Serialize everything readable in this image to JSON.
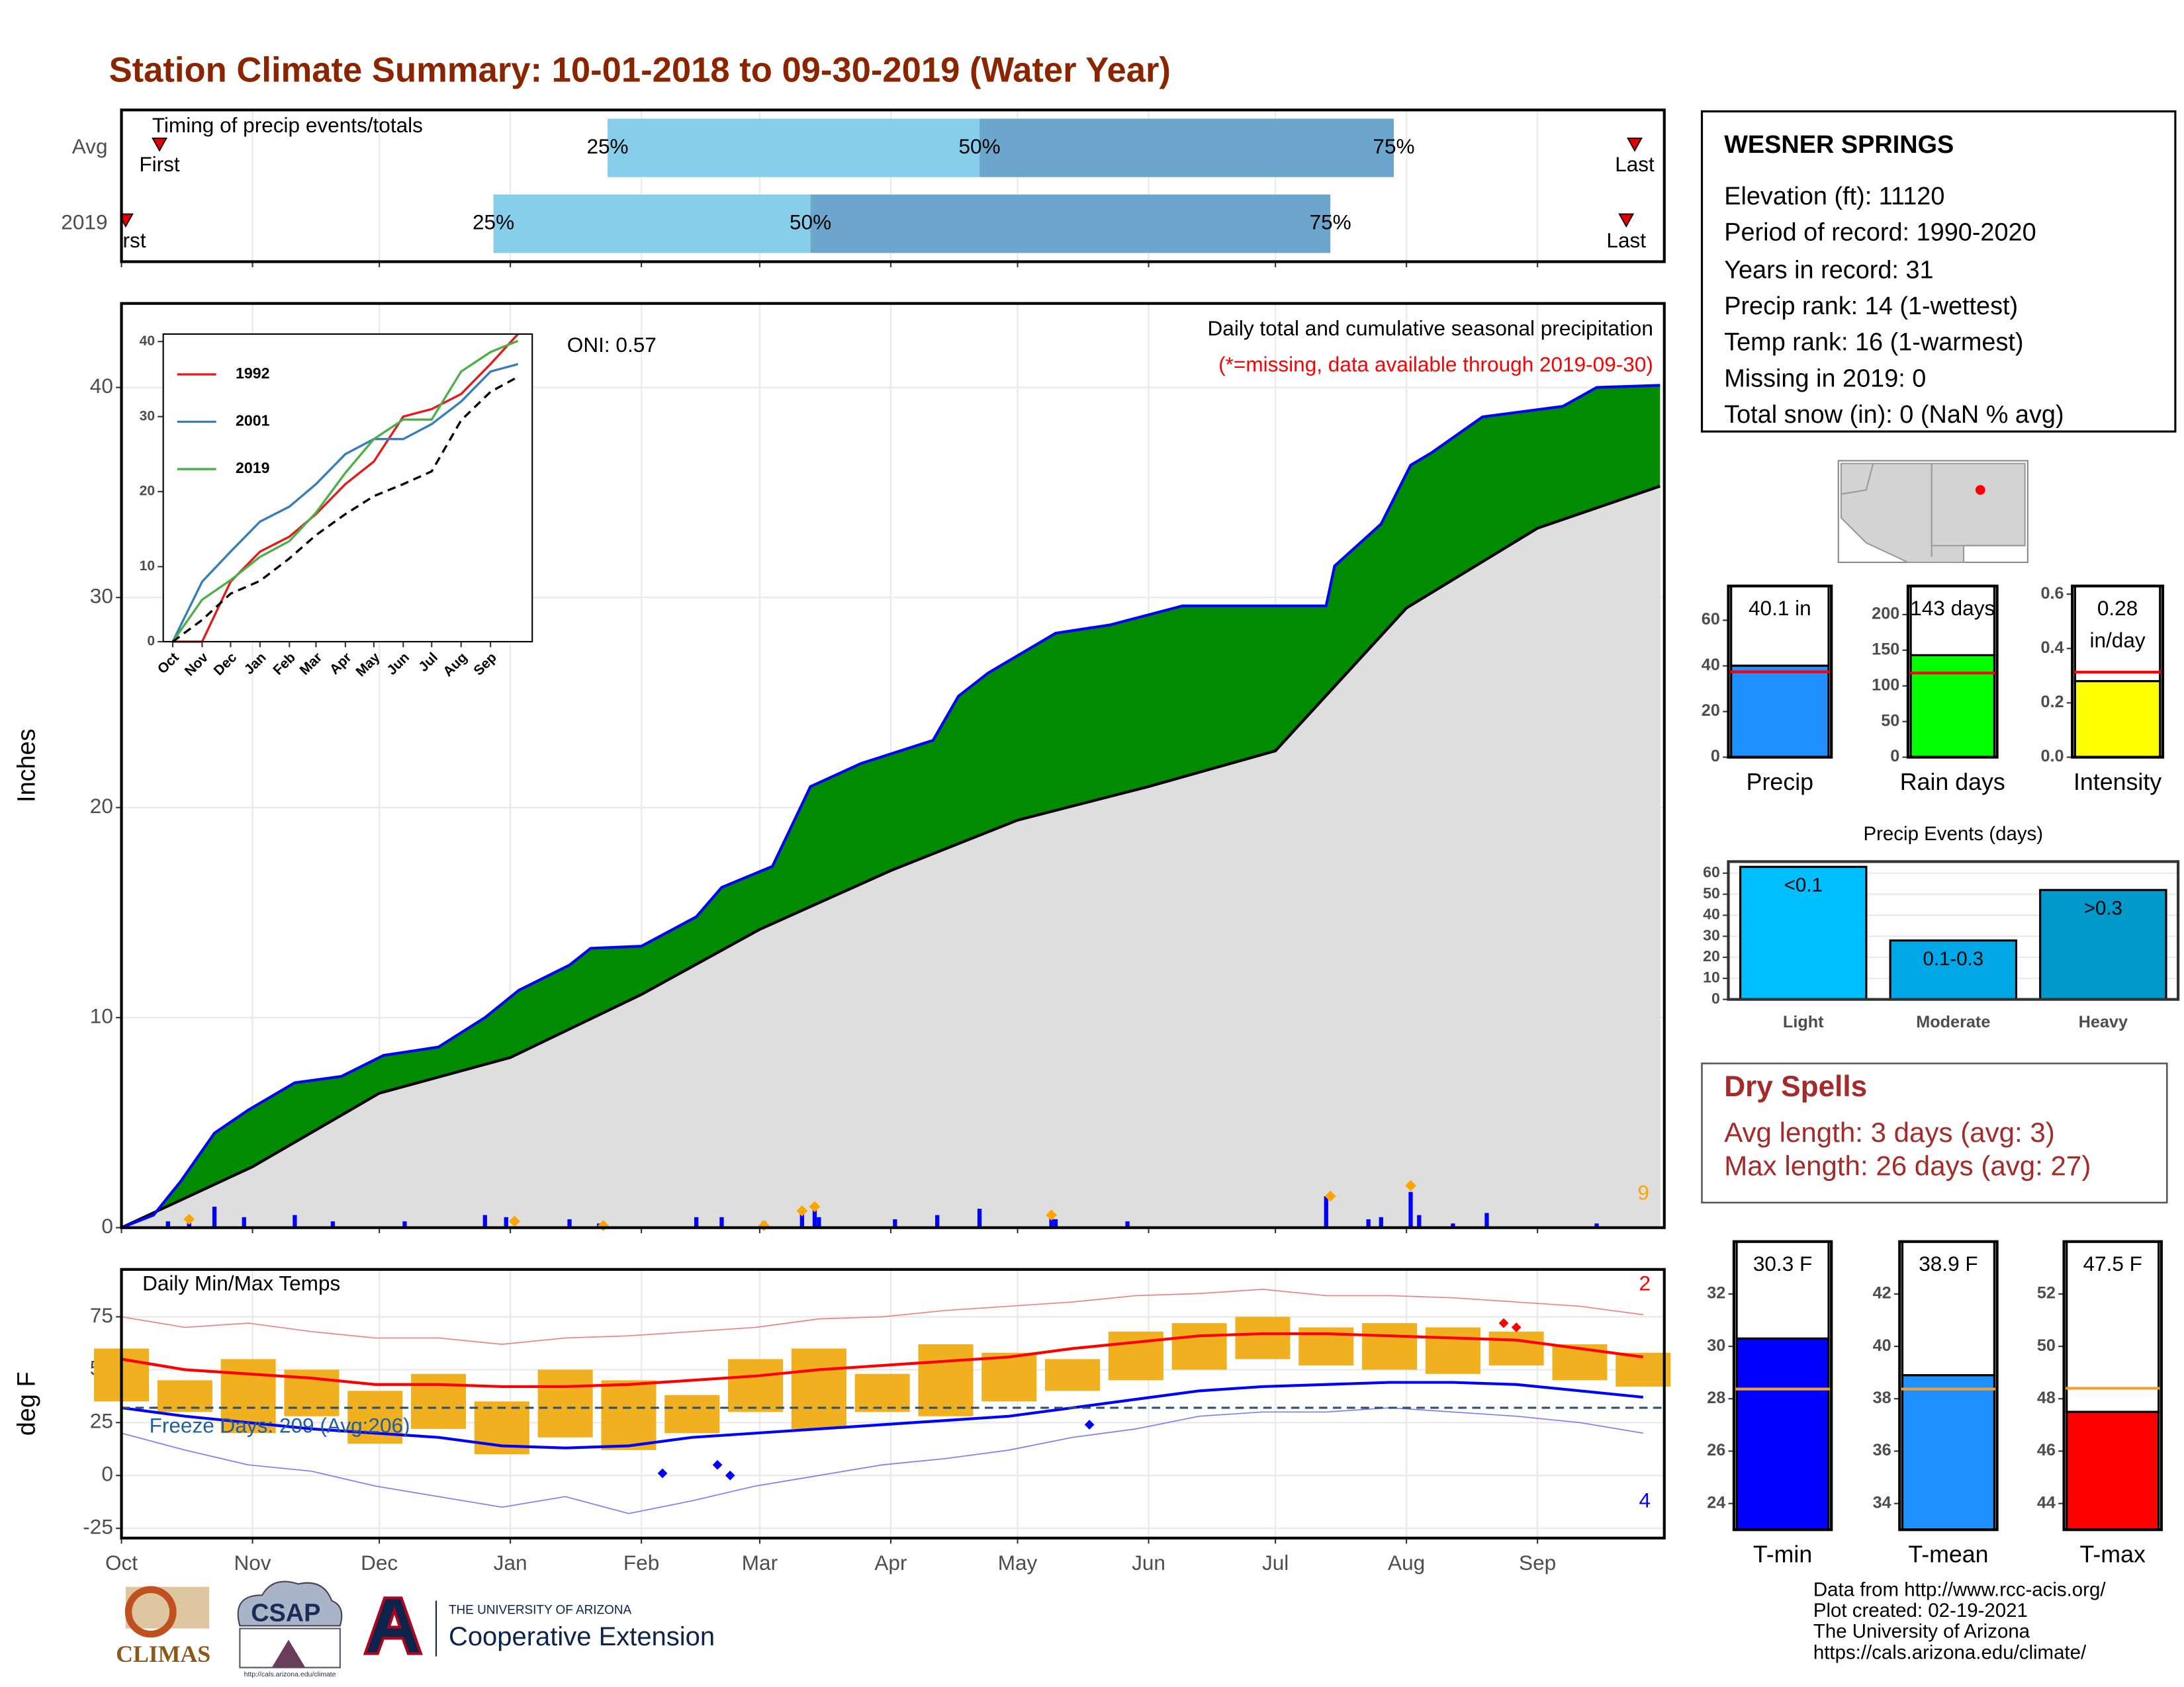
{
  "title": "Station Climate Summary: 10-01-2018 to 09-30-2019 (Water Year)",
  "chart_data": [
    {
      "type": "timing",
      "title": "Timing of precip events/totals",
      "xlim": [
        0,
        365
      ],
      "xticks": [
        0,
        31,
        61,
        92,
        123,
        151,
        182,
        212,
        243,
        273,
        304,
        335
      ],
      "grid": true,
      "point_labels": [
        "First",
        "25%",
        "50%",
        "75%",
        "Last"
      ],
      "colors": [
        "#87ceeb",
        "#6ca6cd"
      ],
      "series": [
        {
          "name": "Avg",
          "values": [
            9,
            115,
            203,
            301,
            358
          ]
        },
        {
          "name": "2019",
          "values": [
            1,
            88,
            163,
            286,
            356
          ]
        }
      ]
    },
    {
      "type": "cumulative",
      "title": "Daily total and cumulative seasonal precipitation",
      "note": "(*=missing, data available through 2019-09-30)",
      "annotation": "ONI: 0.57",
      "ylabel": "Inches",
      "xlim": [
        0,
        365
      ],
      "xticks": [
        0,
        31,
        61,
        92,
        123,
        151,
        182,
        212,
        243,
        273,
        304,
        335
      ],
      "ylim": [
        0,
        44
      ],
      "yticks": [
        0,
        10,
        20,
        30,
        40
      ],
      "grid": true,
      "series": [
        {
          "color": "#0000ff",
          "fill": "#008b00",
          "x": [
            0,
            7.6,
            14,
            22,
            30,
            41,
            52,
            62,
            75,
            86,
            94,
            106,
            111,
            123,
            136,
            142,
            154,
            163,
            175,
            192,
            198,
            205,
            221,
            234,
            251,
            285,
            287,
            298,
            305,
            310,
            322,
            341,
            349,
            364
          ],
          "values": [
            0,
            0.6,
            2.2,
            4.5,
            5.6,
            6.9,
            7.2,
            8.2,
            8.6,
            10,
            11.3,
            12.5,
            13.3,
            13.4,
            14.8,
            16.2,
            17.2,
            21.0,
            22.1,
            23.2,
            25.3,
            26.4,
            28.3,
            28.7,
            29.6,
            29.6,
            31.5,
            33.5,
            36.3,
            36.9,
            38.6,
            39.1,
            40.0,
            40.1
          ]
        },
        {
          "color": "#000000",
          "fill": "#dedede",
          "x": [
            0,
            31,
            61,
            92,
            123,
            151,
            182,
            212,
            243,
            273,
            304,
            335,
            364
          ],
          "values": [
            0,
            2.9,
            6.4,
            8.1,
            11.1,
            14.2,
            17,
            19.4,
            21,
            22.7,
            29.5,
            33.3,
            35.3
          ]
        }
      ],
      "daily": {
        "color": "#0000ff",
        "x": [
          11,
          16,
          22,
          29,
          41,
          50,
          67,
          86,
          91,
          106,
          113,
          136,
          142,
          152,
          161,
          164,
          165,
          183,
          193,
          203,
          220,
          221,
          238,
          285,
          295,
          298,
          305,
          307,
          315,
          323,
          349
        ],
        "values": [
          0.3,
          0.4,
          1.0,
          0.5,
          0.6,
          0.3,
          0.3,
          0.6,
          0.5,
          0.4,
          0.2,
          0.5,
          0.5,
          0.3,
          0.7,
          0.9,
          0.5,
          0.4,
          0.6,
          0.9,
          0.5,
          0.4,
          0.3,
          1.5,
          0.4,
          0.5,
          1.7,
          0.6,
          0.2,
          0.7,
          0.2
        ]
      },
      "records": {
        "color": "#ffa500",
        "x": [
          16,
          93,
          114,
          152,
          161,
          164,
          220,
          286,
          305
        ],
        "values": [
          0.4,
          0.3,
          0.1,
          0.1,
          0.8,
          1.0,
          0.6,
          1.5,
          2.0
        ]
      },
      "record_count": 9
    },
    {
      "type": "inset-lines",
      "xlim": [
        -10,
        379
      ],
      "ylim": [
        0,
        41
      ],
      "yticks": [
        0,
        10,
        20,
        30,
        40
      ],
      "grid": false,
      "xticks": [
        {
          "value": 0,
          "label": "Oct"
        },
        {
          "value": 31,
          "label": "Nov"
        },
        {
          "value": 61,
          "label": "Dec"
        },
        {
          "value": 92,
          "label": "Jan"
        },
        {
          "value": 123,
          "label": "Feb"
        },
        {
          "value": 151,
          "label": "Mar"
        },
        {
          "value": 182,
          "label": "Apr"
        },
        {
          "value": 212,
          "label": "May"
        },
        {
          "value": 243,
          "label": "Jun"
        },
        {
          "value": 273,
          "label": "Jul"
        },
        {
          "value": 304,
          "label": "Aug"
        },
        {
          "value": 335,
          "label": "Sep"
        }
      ],
      "x": [
        0,
        31,
        61,
        92,
        123,
        151,
        182,
        212,
        243,
        273,
        304,
        335,
        364
      ],
      "series": [
        {
          "name": "1992",
          "color": "#e41a1c",
          "values": [
            0,
            0,
            8,
            12,
            14,
            17,
            21,
            24,
            30,
            31,
            33,
            37,
            41
          ]
        },
        {
          "name": "2001",
          "color": "#377eb8",
          "values": [
            0,
            8,
            12,
            16,
            18,
            21,
            25,
            27,
            27,
            29,
            32,
            36,
            37
          ]
        },
        {
          "name": "2019",
          "color": "#4daf4a",
          "values": [
            0,
            5.6,
            8.2,
            11.3,
            13.4,
            17.2,
            22.5,
            27,
            29.6,
            29.6,
            36,
            38.6,
            40.1
          ]
        },
        {
          "color": "#000000",
          "dash": true,
          "values": [
            0,
            2.9,
            6.4,
            8.1,
            11.1,
            14.2,
            17,
            19.4,
            21,
            22.7,
            29.5,
            33.3,
            35.3
          ]
        }
      ]
    },
    {
      "type": "temperature",
      "title": "Daily Min/Max Temps",
      "ylabel": "deg F",
      "freeze_label": "Freeze Days: 209 (Avg:206)",
      "freeze_line": 32,
      "xlim": [
        0,
        365
      ],
      "ylim": [
        -29.6,
        97.4
      ],
      "yticks": [
        -25,
        0,
        25,
        50,
        75
      ],
      "grid": true,
      "xticks": [
        {
          "value": 0,
          "label": "Oct"
        },
        {
          "value": 31,
          "label": "Nov"
        },
        {
          "value": 61,
          "label": "Dec"
        },
        {
          "value": 92,
          "label": "Jan"
        },
        {
          "value": 123,
          "label": "Feb"
        },
        {
          "value": 151,
          "label": "Mar"
        },
        {
          "value": 182,
          "label": "Apr"
        },
        {
          "value": 212,
          "label": "May"
        },
        {
          "value": 243,
          "label": "Jun"
        },
        {
          "value": 273,
          "label": "Jul"
        },
        {
          "value": 304,
          "label": "Aug"
        },
        {
          "value": 335,
          "label": "Sep"
        }
      ],
      "x": [
        0,
        15,
        30,
        45,
        60,
        75,
        90,
        105,
        120,
        135,
        150,
        165,
        180,
        195,
        210,
        225,
        240,
        255,
        270,
        285,
        300,
        315,
        330,
        345,
        360
      ],
      "record_high": {
        "color": "#f08080",
        "values": [
          75,
          70,
          72,
          68,
          65,
          65,
          62,
          65,
          66,
          68,
          70,
          74,
          75,
          78,
          80,
          82,
          85,
          86,
          88,
          85,
          85,
          84,
          82,
          80,
          76
        ]
      },
      "record_low": {
        "color": "#7b7bff",
        "values": [
          20,
          12,
          5,
          2,
          -5,
          -10,
          -15,
          -10,
          -18,
          -12,
          -5,
          0,
          5,
          8,
          12,
          18,
          22,
          28,
          30,
          30,
          32,
          30,
          28,
          25,
          20
        ]
      },
      "obs_max": {
        "color": "#f0b020",
        "values": [
          60,
          45,
          55,
          50,
          40,
          48,
          35,
          50,
          45,
          38,
          55,
          60,
          48,
          62,
          58,
          55,
          68,
          72,
          75,
          70,
          72,
          70,
          68,
          62,
          58
        ]
      },
      "obs_min": {
        "color": "#f0b020",
        "values": [
          35,
          30,
          20,
          28,
          15,
          22,
          10,
          18,
          12,
          20,
          30,
          22,
          30,
          28,
          35,
          40,
          45,
          50,
          55,
          52,
          50,
          48,
          52,
          45,
          42
        ]
      },
      "avg_max": {
        "color": "#ff0000",
        "values": [
          55,
          50,
          48,
          46,
          43,
          43,
          42,
          42,
          43,
          45,
          47,
          50,
          52,
          54,
          56,
          60,
          63,
          66,
          67,
          67,
          66,
          65,
          64,
          60,
          56
        ]
      },
      "avg_min": {
        "color": "#0000ff",
        "values": [
          32,
          28,
          25,
          22,
          20,
          18,
          14,
          13,
          14,
          18,
          20,
          22,
          24,
          26,
          28,
          32,
          36,
          40,
          42,
          43,
          44,
          44,
          43,
          40,
          37
        ]
      },
      "high_records": {
        "color": "#ff0000",
        "x": [
          327,
          330
        ],
        "values": [
          72,
          70
        ],
        "count": 2
      },
      "low_records": {
        "color": "#0000ff",
        "x": [
          128,
          141,
          144,
          229
        ],
        "values": [
          1,
          5,
          0,
          24
        ],
        "count": 4
      }
    },
    {
      "type": "bar",
      "categories": [
        "Precip"
      ],
      "values": [
        40.1
      ],
      "value_labels": [
        "40.1 in"
      ],
      "average": 37.4,
      "average_color": "#ff0000",
      "color": "#1e90ff",
      "ylim": [
        0,
        75
      ],
      "yticks": [
        0,
        20,
        40,
        60
      ]
    },
    {
      "type": "bar",
      "categories": [
        "Rain days"
      ],
      "values": [
        143
      ],
      "value_labels": [
        "143 days"
      ],
      "average": 118,
      "average_color": "#ff0000",
      "color": "#00ff00",
      "ylim": [
        0,
        240
      ],
      "yticks": [
        0,
        50,
        100,
        150,
        200
      ]
    },
    {
      "type": "bar",
      "categories": [
        "Intensity"
      ],
      "values": [
        0.28
      ],
      "value_labels": [
        "0.28"
      ],
      "unit": "in/day",
      "average": 0.313,
      "average_color": "#ff0000",
      "color": "#ffff00",
      "ylim": [
        0,
        0.63
      ],
      "yticks": [
        {
          "value": 0,
          "label": "0.0"
        },
        0.2,
        0.4,
        0.6
      ]
    },
    {
      "type": "bar",
      "title": "Precip Events (days)",
      "categories": [
        "Light",
        "Moderate",
        "Heavy"
      ],
      "values": [
        63,
        28,
        52
      ],
      "value_labels": [
        "<0.1",
        "0.1-0.3",
        ">0.3"
      ],
      "colors": [
        "#00bfff",
        "#00a8e8",
        "#0099cc"
      ],
      "ylim": [
        0,
        65.5
      ],
      "yticks": [
        0,
        10,
        20,
        30,
        40,
        50,
        60
      ],
      "grid": true
    },
    {
      "type": "bar",
      "categories": [
        "T-min"
      ],
      "values": [
        30.3
      ],
      "value_labels": [
        "30.3 F"
      ],
      "average": 28.37,
      "average_color": "#f0a030",
      "color": "#0000ff",
      "ylim": [
        23,
        34
      ],
      "yticks": [
        24,
        26,
        28,
        30,
        32
      ]
    },
    {
      "type": "bar",
      "categories": [
        "T-mean"
      ],
      "values": [
        38.9
      ],
      "value_labels": [
        "38.9 F"
      ],
      "average": 38.37,
      "average_color": "#f0a030",
      "color": "#1e90ff",
      "ylim": [
        33,
        44
      ],
      "yticks": [
        34,
        36,
        38,
        40,
        42
      ]
    },
    {
      "type": "bar",
      "categories": [
        "T-max"
      ],
      "values": [
        47.5
      ],
      "value_labels": [
        "47.5 F"
      ],
      "average": 48.4,
      "average_color": "#f0a030",
      "color": "#ff0000",
      "ylim": [
        43,
        54
      ],
      "yticks": [
        44,
        46,
        48,
        50,
        52
      ]
    }
  ],
  "station": {
    "name": "WESNER SPRINGS",
    "lines": [
      "Elevation (ft): 11120",
      "Period of record: 1990-2020",
      "Years in record: 31",
      "Precip rank: 14 (1-wettest)",
      "Temp rank: 16 (1-warmest)",
      "Missing in 2019: 0",
      "Total snow (in): 0 (NaN % avg)"
    ]
  },
  "dry_spells": {
    "title": "Dry Spells",
    "lines": [
      "Avg length: 3 days (avg: 3)",
      "Max length: 26 days (avg: 27)"
    ]
  },
  "footer": {
    "logos": [
      "CLIMAS",
      "CSAP",
      "http://cals.arizona.edu/climate",
      "THE UNIVERSITY OF ARIZONA",
      "Cooperative Extension"
    ],
    "credits": [
      "Data from http://www.rcc-acis.org/",
      "Plot created: 02-19-2021",
      "The University of Arizona",
      "https://cals.arizona.edu/climate/"
    ]
  }
}
